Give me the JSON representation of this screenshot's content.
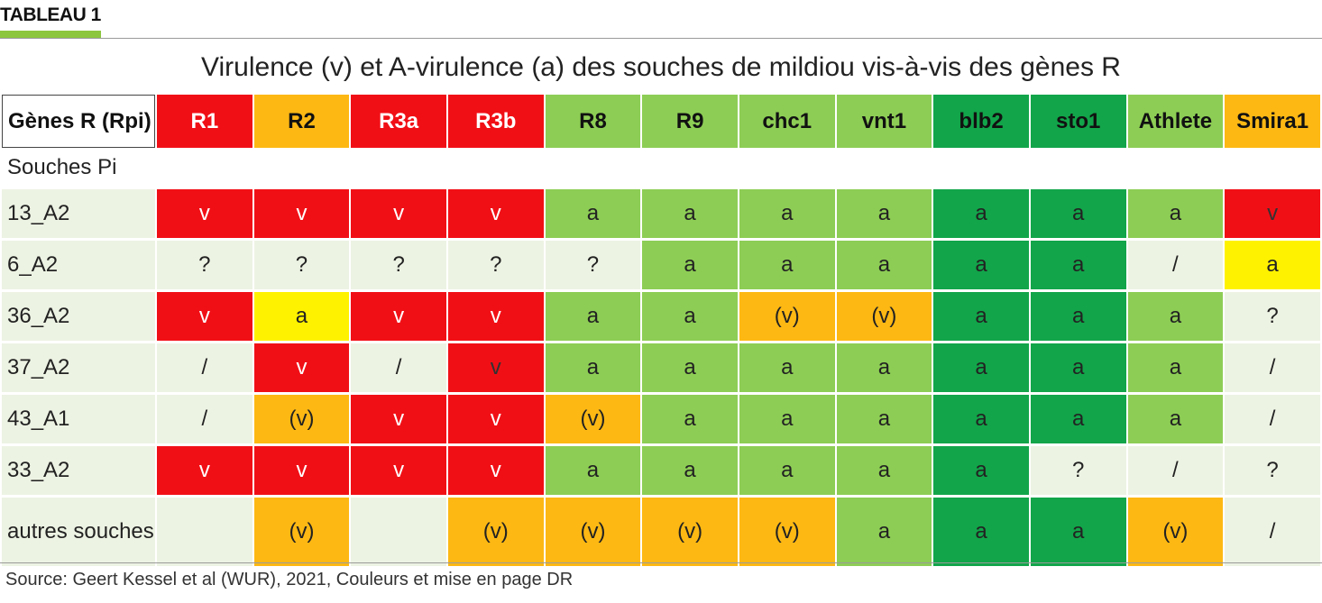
{
  "header": {
    "tag": "TABLEAU 1",
    "accent": "#8cc63f"
  },
  "title": "Virulence (v) et A-virulence (a) des souches de mildiou vis-à-vis des gènes R",
  "table": {
    "corner": "Gènes R (Rpi)",
    "subheader": "Souches Pi",
    "columns": [
      "R1",
      "R2",
      "R3a",
      "R3b",
      "R8",
      "R9",
      "chc1",
      "vnt1",
      "blb2",
      "sto1",
      "Athlete",
      "Smira1"
    ],
    "rows": [
      {
        "label": "13_A2",
        "cells": [
          "v",
          "v",
          "v",
          "v",
          "a",
          "a",
          "a",
          "a",
          "a",
          "a",
          "a",
          "v"
        ]
      },
      {
        "label": "6_A2",
        "cells": [
          "?",
          "?",
          "?",
          "?",
          "?",
          "a",
          "a",
          "a",
          "a",
          "a",
          "/",
          "a"
        ]
      },
      {
        "label": "36_A2",
        "cells": [
          "v",
          "a",
          "v",
          "v",
          "a",
          "a",
          "(v)",
          "(v)",
          "a",
          "a",
          "a",
          "?"
        ]
      },
      {
        "label": "37_A2",
        "cells": [
          "/",
          "v",
          "/",
          "v",
          "a",
          "a",
          "a",
          "a",
          "a",
          "a",
          "a",
          "/"
        ]
      },
      {
        "label": "43_A1",
        "cells": [
          "/",
          "(v)",
          "v",
          "v",
          "(v)",
          "a",
          "a",
          "a",
          "a",
          "a",
          "a",
          "/"
        ]
      },
      {
        "label": "33_A2",
        "cells": [
          "v",
          "v",
          "v",
          "v",
          "a",
          "a",
          "a",
          "a",
          "a",
          "?",
          "/",
          "?"
        ]
      },
      {
        "label": "autres souches",
        "cells": [
          "",
          "(v)",
          "",
          "(v)",
          "(v)",
          "(v)",
          "(v)",
          "a",
          "a",
          "a",
          "(v)",
          "/"
        ]
      }
    ]
  },
  "colors": {
    "red": "#f10f16",
    "orange": "#fdb813",
    "yellow": "#fff200",
    "green": "#8dcd55",
    "dark_green": "#12a54a",
    "pale": "#edf3e3"
  },
  "source": "Source: Geert Kessel et al  (WUR), 2021, Couleurs et mise en page DR"
}
